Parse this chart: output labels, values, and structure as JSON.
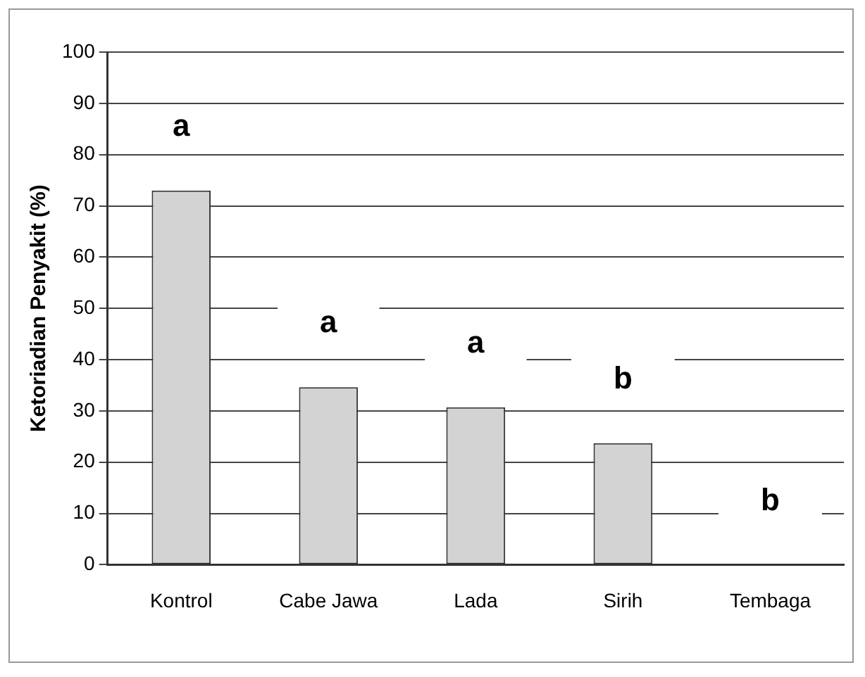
{
  "chart_data": {
    "type": "bar",
    "ylabel": "Ketoriadian Penyakit (%)",
    "categories": [
      "Kontrol",
      "Cabe Jawa",
      "Lada",
      "Sirih",
      "Tembaga"
    ],
    "values": [
      73,
      34.6,
      30.7,
      23.7,
      0
    ],
    "color": "#d3d3d3",
    "ylim": [
      0,
      100
    ],
    "yticks": [
      0,
      10,
      20,
      30,
      40,
      50,
      60,
      70,
      80,
      90,
      100
    ],
    "grid": "y",
    "legend": false,
    "annotations": [
      "a",
      "a",
      "a",
      "b",
      "b"
    ]
  }
}
